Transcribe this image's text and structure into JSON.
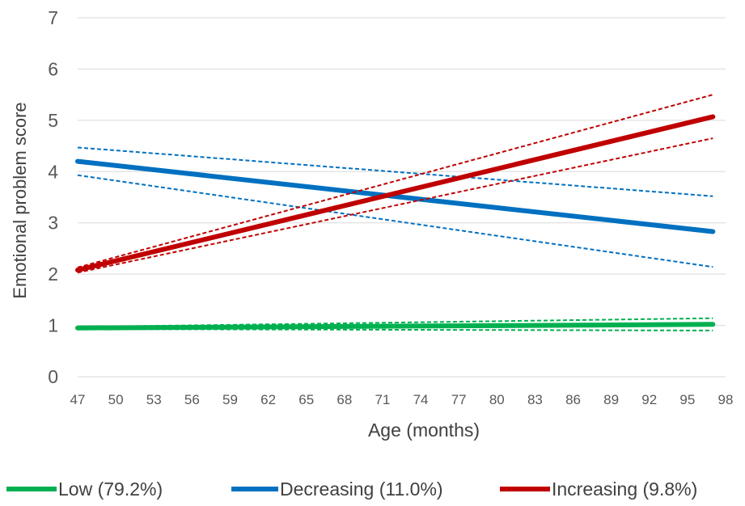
{
  "chart_data": {
    "type": "line",
    "title": "",
    "xlabel": "Age (months)",
    "ylabel": "Emotional problem score",
    "xlim": [
      47,
      98
    ],
    "ylim": [
      0,
      7
    ],
    "x_ticks": [
      47,
      50,
      53,
      56,
      59,
      62,
      65,
      68,
      71,
      74,
      77,
      80,
      83,
      86,
      89,
      92,
      95,
      98
    ],
    "y_ticks": [
      0,
      1,
      2,
      3,
      4,
      5,
      6,
      7
    ],
    "grid": "horizontal",
    "legend_position": "bottom",
    "series": [
      {
        "name": "Low (79.2%)",
        "color": "#00B050",
        "x": [
          47,
          97
        ],
        "values": [
          0.95,
          1.02
        ],
        "ci_lower": [
          0.93,
          0.9
        ],
        "ci_upper": [
          0.97,
          1.14
        ]
      },
      {
        "name": "Decreasing (11.0%)",
        "color": "#0070C0",
        "x": [
          47,
          97
        ],
        "values": [
          4.2,
          2.83
        ],
        "ci_lower": [
          3.93,
          2.14
        ],
        "ci_upper": [
          4.47,
          3.52
        ]
      },
      {
        "name": "Increasing (9.8%)",
        "color": "#C00000",
        "x": [
          47,
          97
        ],
        "values": [
          2.08,
          5.07
        ],
        "ci_lower": [
          2.03,
          4.65
        ],
        "ci_upper": [
          2.13,
          5.5
        ]
      }
    ]
  }
}
